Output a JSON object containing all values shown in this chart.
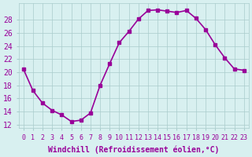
{
  "x": [
    0,
    1,
    2,
    3,
    4,
    5,
    6,
    7,
    8,
    9,
    10,
    11,
    12,
    13,
    14,
    15,
    16,
    17,
    18,
    19,
    20,
    21,
    22,
    23
  ],
  "y": [
    20.5,
    17.2,
    15.3,
    14.2,
    13.5,
    12.5,
    12.7,
    13.8,
    18.0,
    21.3,
    24.5,
    26.2,
    28.1,
    29.4,
    29.5,
    29.3,
    29.1,
    29.4,
    28.2,
    26.5,
    24.2,
    22.2,
    20.5,
    20.3
  ],
  "line_color": "#990099",
  "marker": "s",
  "markersize": 3,
  "linewidth": 1.2,
  "bg_color": "#d8f0f0",
  "grid_color": "#aacccc",
  "xlabel": "Windchill (Refroidissement éolien,°C)",
  "xlabel_fontsize": 7,
  "ylabel_ticks": [
    12,
    14,
    16,
    18,
    20,
    22,
    24,
    26,
    28
  ],
  "ylim": [
    11.5,
    30.5
  ],
  "xlim": [
    -0.5,
    23.5
  ],
  "xtick_fontsize": 6,
  "ytick_fontsize": 7,
  "tick_color": "#990099"
}
